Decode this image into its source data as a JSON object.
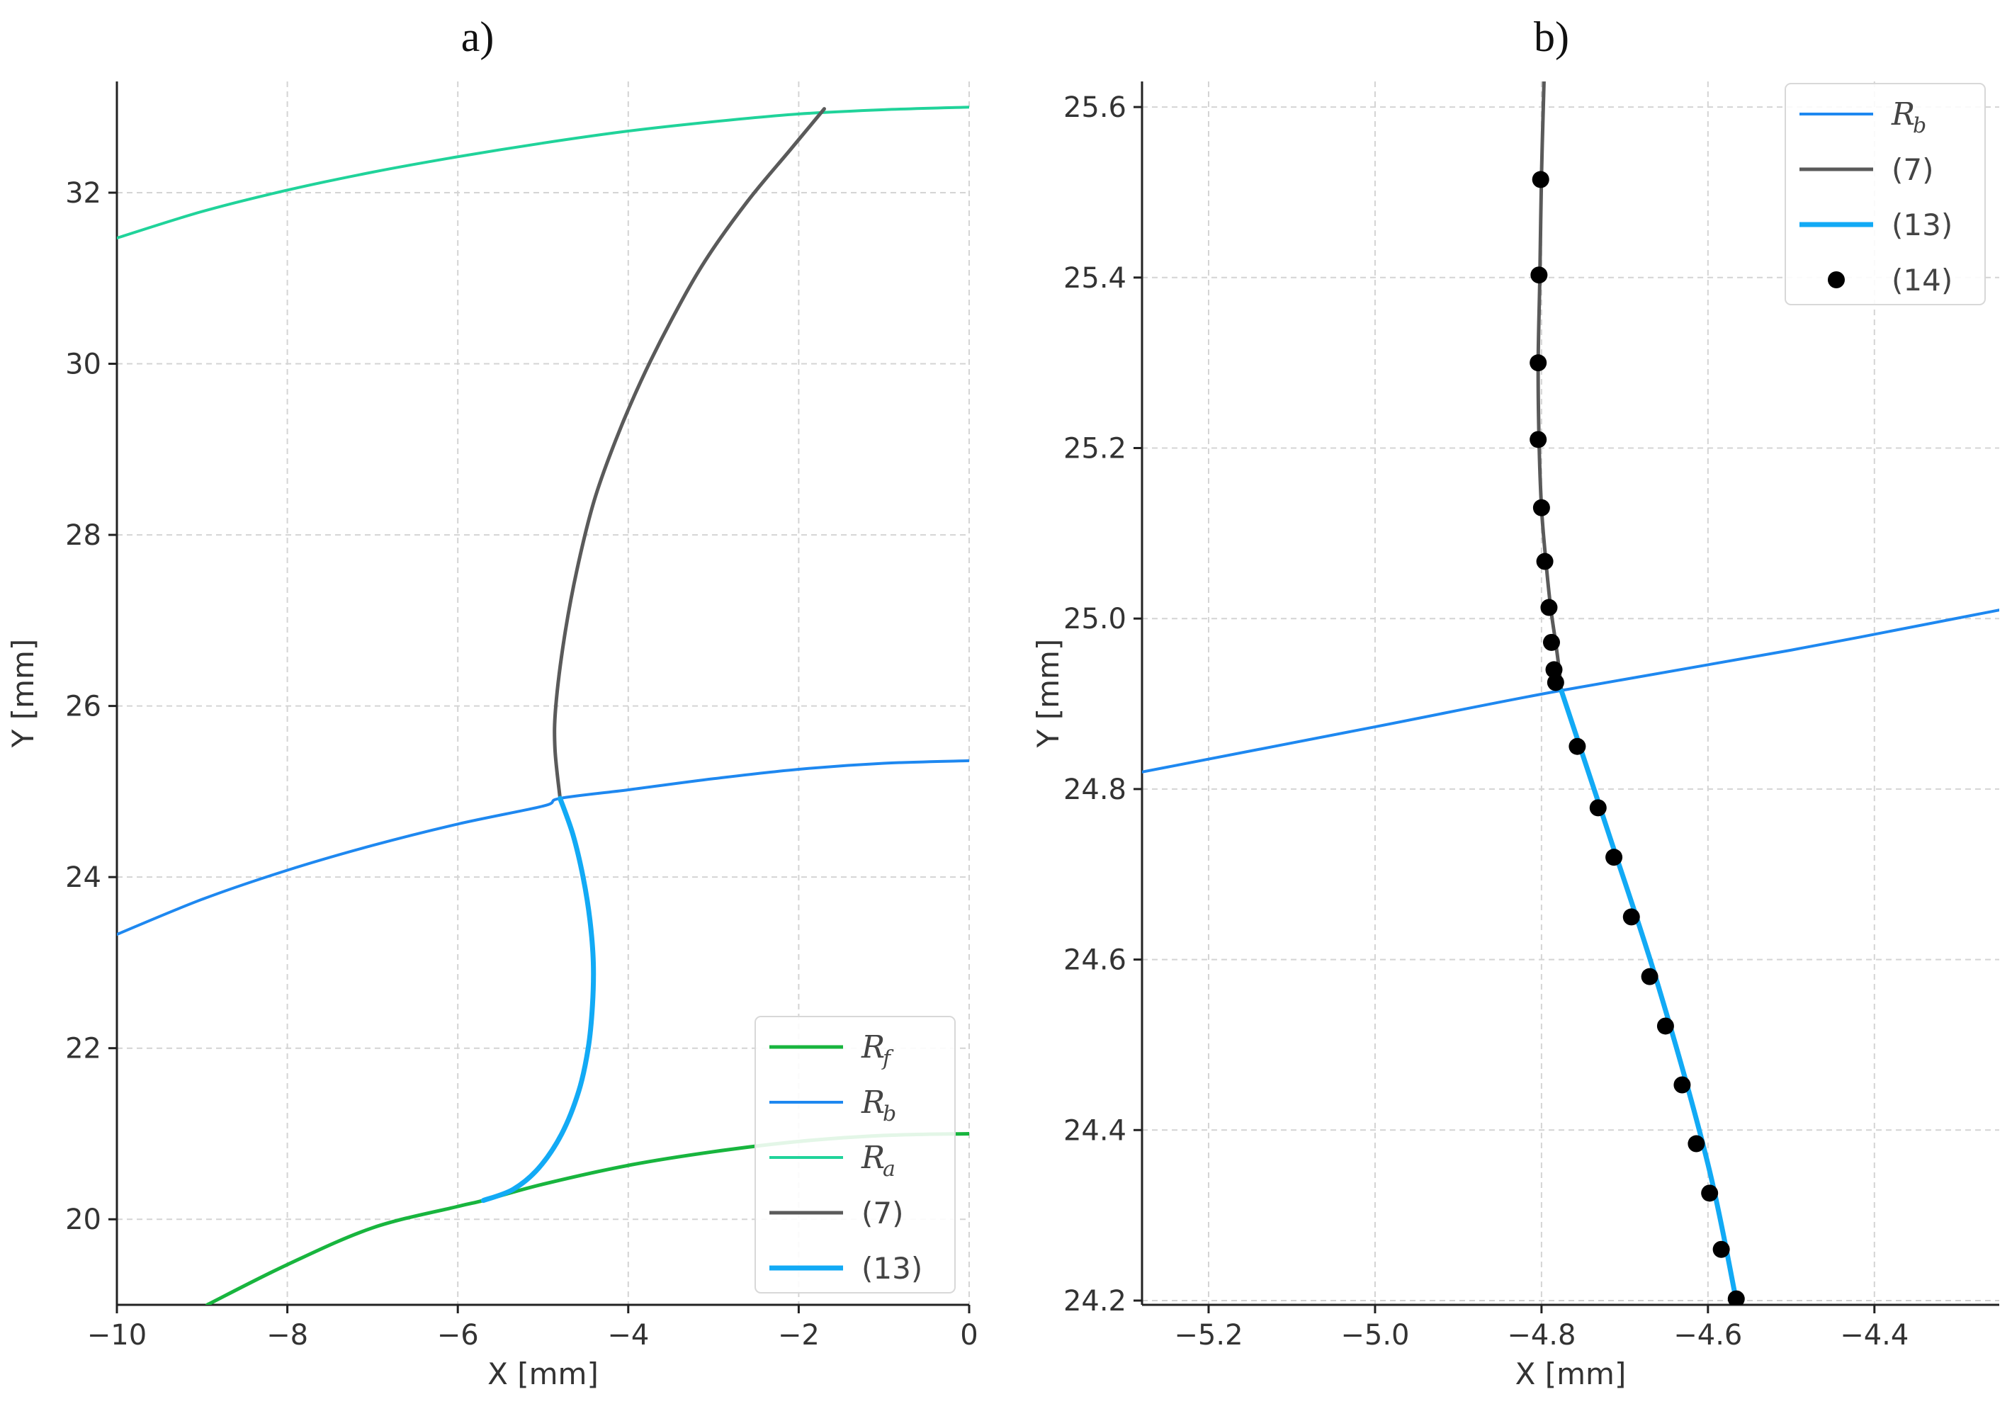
{
  "panels": {
    "a": {
      "title": "a)"
    },
    "b": {
      "title": "b)"
    }
  },
  "chart_data": [
    {
      "type": "line",
      "panel": "a",
      "title": "a)",
      "xlabel": "X [mm]",
      "ylabel": "Y [mm]",
      "xlim": [
        -10,
        0
      ],
      "ylim": [
        19,
        33.3
      ],
      "xticks": [
        -10,
        -8,
        -6,
        -4,
        -2,
        0
      ],
      "yticks": [
        20,
        22,
        24,
        26,
        28,
        30,
        32
      ],
      "grid": true,
      "legend_position": "lower-right",
      "series": [
        {
          "name": "R",
          "sub": "f",
          "color": "#18b53e",
          "width": 5,
          "x": [
            -8.94,
            -8,
            -7,
            -6,
            -5.7,
            -5,
            -4,
            -3,
            -2,
            -1,
            0
          ],
          "y": [
            19.0,
            19.47,
            19.9,
            20.15,
            20.22,
            20.41,
            20.63,
            20.79,
            20.91,
            20.98,
            21.0
          ]
        },
        {
          "name": "R",
          "sub": "b",
          "color": "#1e88f0",
          "width": 4,
          "x": [
            -10,
            -9,
            -8,
            -7,
            -6,
            -5,
            -4.8,
            -4,
            -3,
            -2,
            -1,
            0
          ],
          "y": [
            23.33,
            23.74,
            24.08,
            24.37,
            24.62,
            24.83,
            24.92,
            25.02,
            25.15,
            25.26,
            25.33,
            25.36
          ]
        },
        {
          "name": "R",
          "sub": "a",
          "color": "#20d39a",
          "width": 4,
          "x": [
            -10,
            -9,
            -8,
            -7,
            -6,
            -5,
            -4,
            -3,
            -2,
            -1,
            0
          ],
          "y": [
            31.47,
            31.78,
            32.03,
            32.24,
            32.42,
            32.58,
            32.72,
            32.83,
            32.92,
            32.97,
            33.0
          ]
        },
        {
          "name": "(7)",
          "color": "#5a5a5a",
          "width": 5,
          "x": [
            -4.8,
            -4.86,
            -4.85,
            -4.75,
            -4.6,
            -4.4,
            -4.15,
            -3.85,
            -3.5,
            -3.1,
            -2.6,
            -2.1,
            -1.7
          ],
          "y": [
            24.92,
            25.5,
            26.0,
            26.8,
            27.6,
            28.4,
            29.1,
            29.8,
            30.5,
            31.2,
            31.9,
            32.5,
            32.98
          ]
        },
        {
          "name": "(13)",
          "color": "#12aaf5",
          "width": 7,
          "x": [
            -4.8,
            -4.65,
            -4.53,
            -4.45,
            -4.41,
            -4.42,
            -4.47,
            -4.58,
            -4.78,
            -5.05,
            -5.35,
            -5.7
          ],
          "y": [
            24.92,
            24.5,
            24.0,
            23.5,
            23.0,
            22.5,
            22.0,
            21.5,
            21.0,
            20.6,
            20.35,
            20.22
          ]
        }
      ]
    },
    {
      "type": "line",
      "panel": "b",
      "title": "b)",
      "xlabel": "X [mm]",
      "ylabel": "Y [mm]",
      "xlim": [
        -5.28,
        -4.25
      ],
      "ylim": [
        24.195,
        25.63
      ],
      "xticks": [
        -5.2,
        -5.0,
        -4.8,
        -4.6,
        -4.4
      ],
      "yticks": [
        24.2,
        24.4,
        24.6,
        24.8,
        25.0,
        25.2,
        25.4,
        25.6
      ],
      "tick_decimals": 1,
      "grid": true,
      "legend_position": "upper-right",
      "series": [
        {
          "name": "R",
          "sub": "b",
          "color": "#1e88f0",
          "width": 4,
          "x": [
            -5.28,
            -5.0,
            -4.78,
            -4.5,
            -4.25
          ],
          "y": [
            24.82,
            24.873,
            24.915,
            24.963,
            25.01
          ]
        },
        {
          "name": "(7)",
          "color": "#5a5a5a",
          "width": 5,
          "x": [
            -4.797,
            -4.8,
            -4.802,
            -4.804,
            -4.803,
            -4.8,
            -4.795,
            -4.789,
            -4.783,
            -4.779,
            -4.776
          ],
          "y": [
            25.63,
            25.52,
            25.4,
            25.3,
            25.21,
            25.13,
            25.07,
            25.013,
            24.972,
            24.942,
            24.915
          ]
        },
        {
          "name": "(13)",
          "color": "#12aaf5",
          "width": 7,
          "x": [
            -4.776,
            -4.72,
            -4.66,
            -4.6,
            -4.565
          ],
          "y": [
            24.915,
            24.75,
            24.57,
            24.36,
            24.195
          ]
        },
        {
          "name": "(14)",
          "type": "scatter",
          "color": "#000000",
          "marker": "circle",
          "x": [
            -4.801,
            -4.803,
            -4.804,
            -4.804,
            -4.8,
            -4.796,
            -4.791,
            -4.788,
            -4.785,
            -4.783,
            -4.757,
            -4.732,
            -4.713,
            -4.692,
            -4.67,
            -4.651,
            -4.631,
            -4.614,
            -4.598,
            -4.584,
            -4.566
          ],
          "y": [
            25.515,
            25.403,
            25.3,
            25.21,
            25.13,
            25.067,
            25.013,
            24.972,
            24.94,
            24.925,
            24.85,
            24.778,
            24.72,
            24.65,
            24.58,
            24.522,
            24.453,
            24.384,
            24.326,
            24.26,
            24.202
          ]
        }
      ]
    }
  ]
}
